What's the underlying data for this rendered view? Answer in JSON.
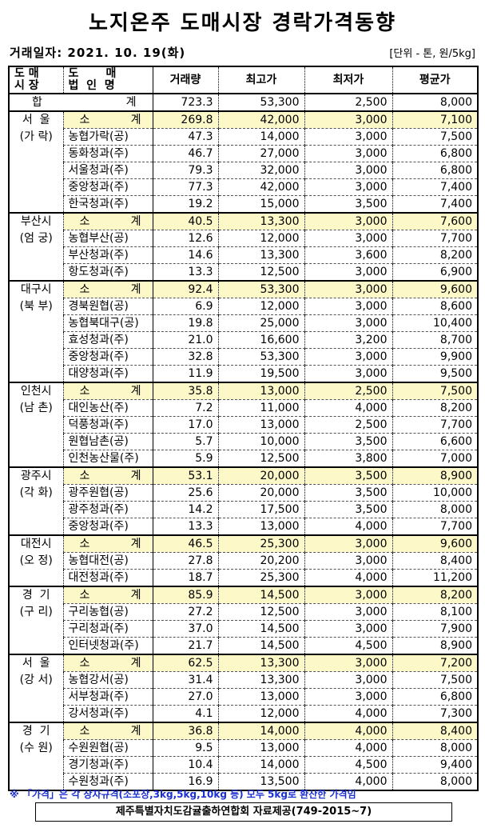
{
  "title": "노지온주 도매시장 경락가격동향",
  "date_label": "거래일자: 2021. 10. 19(화)",
  "unit_label": "[단위 - 톤, 원/5kg]",
  "columns": {
    "market": [
      "도  매",
      "시  장"
    ],
    "company": [
      "도       매",
      "법  인  명"
    ],
    "volume": "거래량",
    "max": "최고가",
    "min": "최저가",
    "avg": "평균가"
  },
  "total": {
    "label_left": "합",
    "label_right": "계",
    "volume": "723.3",
    "max": "53,300",
    "min": "2,500",
    "avg": "8,000"
  },
  "subtotal_label": [
    "소",
    "계"
  ],
  "groups": [
    {
      "market": [
        "서  울",
        "(가 락)"
      ],
      "rows": [
        [
          "소계",
          "269.8",
          "42,000",
          "3,000",
          "7,100"
        ],
        [
          "농협가락(공)",
          "47.3",
          "14,000",
          "3,000",
          "7,500"
        ],
        [
          "동화청과(주)",
          "46.7",
          "27,000",
          "3,000",
          "6,800"
        ],
        [
          "서울청과(주)",
          "79.3",
          "32,000",
          "3,000",
          "6,800"
        ],
        [
          "중앙청과(주)",
          "77.3",
          "42,000",
          "3,000",
          "7,400"
        ],
        [
          "한국청과(주)",
          "19.2",
          "15,000",
          "3,500",
          "7,400"
        ]
      ]
    },
    {
      "market": [
        "부산시",
        "(엄 궁)"
      ],
      "rows": [
        [
          "소계",
          "40.5",
          "13,300",
          "3,000",
          "7,600"
        ],
        [
          "농협부산(공)",
          "12.6",
          "12,000",
          "3,000",
          "7,700"
        ],
        [
          "부산청과(주)",
          "14.6",
          "13,300",
          "3,600",
          "8,200"
        ],
        [
          "항도청과(주)",
          "13.3",
          "12,500",
          "3,000",
          "6,900"
        ]
      ]
    },
    {
      "market": [
        "대구시",
        "(북 부)"
      ],
      "rows": [
        [
          "소계",
          "92.4",
          "53,300",
          "3,000",
          "9,600"
        ],
        [
          "경북원협(공)",
          "6.9",
          "12,000",
          "3,000",
          "8,600"
        ],
        [
          "농협북대구(공)",
          "19.8",
          "25,000",
          "3,000",
          "10,400"
        ],
        [
          "효성청과(주)",
          "21.0",
          "16,600",
          "3,200",
          "8,700"
        ],
        [
          "중앙청과(주)",
          "32.8",
          "53,300",
          "3,000",
          "9,900"
        ],
        [
          "대양청과(주)",
          "11.9",
          "19,500",
          "3,000",
          "9,500"
        ]
      ]
    },
    {
      "market": [
        "인천시",
        "(남 촌)"
      ],
      "rows": [
        [
          "소계",
          "35.8",
          "13,000",
          "2,500",
          "7,500"
        ],
        [
          "대인농산(주)",
          "7.2",
          "11,000",
          "4,000",
          "8,200"
        ],
        [
          "덕풍청과(주)",
          "17.0",
          "13,000",
          "2,500",
          "7,700"
        ],
        [
          "원협남촌(공)",
          "5.7",
          "10,000",
          "3,500",
          "6,600"
        ],
        [
          "인천농산물(주)",
          "5.9",
          "12,500",
          "3,800",
          "7,000"
        ]
      ]
    },
    {
      "market": [
        "광주시",
        "(각 화)"
      ],
      "rows": [
        [
          "소계",
          "53.1",
          "20,000",
          "3,500",
          "8,900"
        ],
        [
          "광주원협(공)",
          "25.6",
          "20,000",
          "3,500",
          "10,000"
        ],
        [
          "광주청과(주)",
          "14.2",
          "17,500",
          "3,500",
          "8,000"
        ],
        [
          "중앙청과(주)",
          "13.3",
          "13,000",
          "4,000",
          "7,700"
        ]
      ]
    },
    {
      "market": [
        "대전시",
        "(오 정)"
      ],
      "rows": [
        [
          "소계",
          "46.5",
          "25,300",
          "3,000",
          "9,600"
        ],
        [
          "농협대전(공)",
          "27.8",
          "20,200",
          "3,000",
          "8,400"
        ],
        [
          "대전청과(주)",
          "18.7",
          "25,300",
          "4,000",
          "11,200"
        ]
      ]
    },
    {
      "market": [
        "경  기",
        "(구 리)"
      ],
      "rows": [
        [
          "소계",
          "85.9",
          "14,500",
          "3,000",
          "8,200"
        ],
        [
          "구리농협(공)",
          "27.2",
          "12,500",
          "3,000",
          "8,100"
        ],
        [
          "구리청과(주)",
          "37.0",
          "14,500",
          "3,000",
          "7,900"
        ],
        [
          "인터넷청과(주)",
          "21.7",
          "14,500",
          "4,500",
          "8,900"
        ]
      ]
    },
    {
      "market": [
        "서  울",
        "(강 서)"
      ],
      "rows": [
        [
          "소계",
          "62.5",
          "13,300",
          "3,000",
          "7,200"
        ],
        [
          "농협강서(공)",
          "31.4",
          "13,300",
          "3,000",
          "7,500"
        ],
        [
          "서부청과(주)",
          "27.0",
          "13,000",
          "3,000",
          "6,800"
        ],
        [
          "강서청과(주)",
          "4.1",
          "12,000",
          "4,000",
          "7,300"
        ]
      ]
    },
    {
      "market": [
        "경  기",
        "(수 원)"
      ],
      "rows": [
        [
          "소계",
          "36.8",
          "14,000",
          "4,000",
          "8,400"
        ],
        [
          "수원원협(공)",
          "9.5",
          "13,000",
          "4,000",
          "8,000"
        ],
        [
          "경기청과(주)",
          "10.4",
          "14,000",
          "4,500",
          "9,400"
        ],
        [
          "수원청과(주)",
          "16.9",
          "13,500",
          "4,000",
          "8,000"
        ]
      ]
    }
  ],
  "note": "※ 「가격」은 각 상자규격(소포장,3kg,5kg,10kg 등) 모두 5kg로 환산한 가격임",
  "source": "제주특별자치도감귤출하연합회 자료제공(749-2015~7)",
  "colors": {
    "subtotal_bg": "#fdf8c8",
    "note_text": "#1a2fd0"
  }
}
